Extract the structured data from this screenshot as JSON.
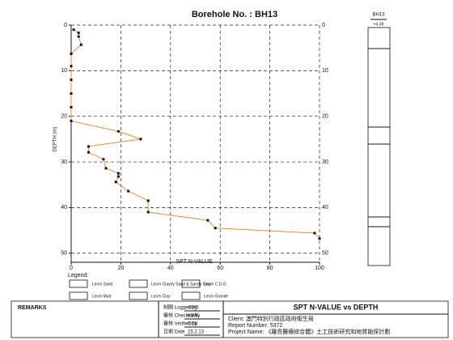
{
  "chart_data": {
    "type": "line",
    "title": "Borehole No. : BH13",
    "x_label": "SPT N-VALUE",
    "y_label": "DEPTH (m)",
    "x": [
      1,
      3,
      3,
      4,
      0,
      0,
      0,
      0,
      0,
      0,
      19,
      28,
      7,
      7,
      13,
      14,
      19,
      19,
      18,
      23,
      31,
      31,
      55,
      58,
      98,
      100
    ],
    "y": [
      1,
      1.7,
      2.5,
      4.3,
      6.3,
      9,
      12,
      15,
      18,
      21,
      23.3,
      25,
      26.6,
      27.9,
      29.4,
      31.4,
      32.5,
      33.2,
      34.4,
      36.4,
      38.5,
      41,
      42.8,
      44.5,
      45.6,
      46.8
    ],
    "color": "#f08a3c",
    "marker_color": "#111111",
    "xlim": [
      0,
      100
    ],
    "xticks": [
      0,
      20,
      40,
      60,
      80,
      100
    ],
    "ylim": [
      0,
      52
    ],
    "yticks": [
      0,
      10,
      20,
      30,
      40,
      50
    ],
    "y_inverted": true,
    "grid": true
  },
  "borehole": {
    "name": "BH13",
    "elevation": "+4.39"
  },
  "legend": {
    "title": "Legend:",
    "items": [
      "Lecm Sand",
      "Lecm Clayey Sand & Sandy Clay",
      "Lecm C.D.G.",
      "Lecm Mud",
      "Lecm Clay",
      "Lecm Granite"
    ]
  },
  "footer": {
    "remarks": "REMARKS",
    "signoff": [
      [
        "制圖 Logged by",
        "AWS"
      ],
      [
        "審核 Checked by",
        "KWK"
      ],
      [
        "審核 Verified by",
        "CCK"
      ],
      [
        "日期 Date",
        "15.2.13"
      ]
    ],
    "report_title": "SPT N-VALUE vs DEPTH",
    "client": "Client: 澳門特別行政區政府衛生局",
    "report_number": "Report Number: 5372",
    "project": "Project Name: 《離島醫療綜合體》土工技術研究和地質勘探計劃"
  }
}
